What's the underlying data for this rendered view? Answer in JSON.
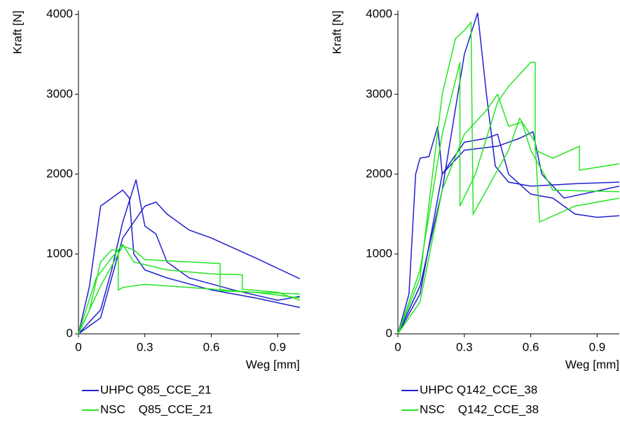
{
  "chart_data": [
    {
      "type": "line",
      "y_label": "Kraft [N]",
      "x_label": "Weg [mm]",
      "xlim": [
        0,
        1.0
      ],
      "ylim": [
        0,
        4050
      ],
      "xticks": [
        0,
        0.3,
        0.6,
        0.9
      ],
      "yticks": [
        0,
        1000,
        2000,
        3000,
        4000
      ],
      "series": [
        {
          "name": "UHPC Q85_CCE_21",
          "color": "#1f1fd0",
          "curves": [
            {
              "x": [
                0,
                0.05,
                0.1,
                0.15,
                0.2,
                0.23,
                0.25,
                0.3,
                0.4,
                0.6,
                0.8,
                1.0
              ],
              "values": [
                0,
                600,
                1600,
                1700,
                1800,
                1700,
                1000,
                800,
                700,
                550,
                450,
                330
              ]
            },
            {
              "x": [
                0,
                0.1,
                0.15,
                0.2,
                0.26,
                0.3,
                0.35,
                0.4,
                0.5,
                0.7,
                0.9,
                1.0
              ],
              "values": [
                0,
                300,
                800,
                1400,
                1930,
                1350,
                1250,
                900,
                700,
                550,
                420,
                470
              ]
            },
            {
              "x": [
                0,
                0.1,
                0.15,
                0.2,
                0.3,
                0.35,
                0.4,
                0.5,
                0.6,
                0.8,
                0.9,
                1.0
              ],
              "values": [
                0,
                200,
                700,
                1200,
                1600,
                1650,
                1500,
                1300,
                1200,
                950,
                820,
                690
              ]
            }
          ]
        },
        {
          "name": "NSC    Q85_CCE_21",
          "color": "#22e622",
          "curves": [
            {
              "x": [
                0,
                0.05,
                0.1,
                0.15,
                0.18,
                0.18,
                0.2,
                0.3,
                0.5,
                0.8,
                1.0
              ],
              "values": [
                0,
                300,
                900,
                1050,
                1050,
                550,
                580,
                620,
                580,
                520,
                500
              ]
            },
            {
              "x": [
                0,
                0.1,
                0.2,
                0.25,
                0.3,
                0.5,
                0.64,
                0.64,
                0.8,
                1.0
              ],
              "values": [
                0,
                600,
                1100,
                1050,
                930,
                900,
                880,
                540,
                520,
                450
              ]
            },
            {
              "x": [
                0,
                0.08,
                0.15,
                0.2,
                0.25,
                0.4,
                0.6,
                0.74,
                0.74,
                0.9,
                1.0
              ],
              "values": [
                0,
                700,
                950,
                1120,
                900,
                800,
                750,
                740,
                560,
                520,
                420
              ]
            }
          ]
        }
      ]
    },
    {
      "type": "line",
      "y_label": "Kraft [N]",
      "x_label": "Weg [mm]",
      "xlim": [
        0,
        1.0
      ],
      "ylim": [
        0,
        4050
      ],
      "xticks": [
        0,
        0.3,
        0.6,
        0.9
      ],
      "yticks": [
        0,
        1000,
        2000,
        3000,
        4000
      ],
      "series": [
        {
          "name": "UHPC Q142_CCE_38",
          "color": "#1f1fd0",
          "curves": [
            {
              "x": [
                0,
                0.05,
                0.08,
                0.1,
                0.14,
                0.18,
                0.2,
                0.3,
                0.4,
                0.45,
                0.5,
                0.6,
                0.7,
                0.8,
                0.9,
                1.0
              ],
              "values": [
                0,
                500,
                2000,
                2200,
                2220,
                2600,
                2000,
                2400,
                2450,
                2500,
                2000,
                1750,
                1700,
                1500,
                1460,
                1480
              ]
            },
            {
              "x": [
                0,
                0.1,
                0.2,
                0.3,
                0.36,
                0.4,
                0.44,
                0.5,
                0.6,
                0.8,
                1.0
              ],
              "values": [
                0,
                600,
                1800,
                3500,
                4020,
                3000,
                2100,
                1900,
                1850,
                1880,
                1900
              ]
            },
            {
              "x": [
                0,
                0.1,
                0.2,
                0.3,
                0.45,
                0.55,
                0.61,
                0.65,
                0.75,
                1.0
              ],
              "values": [
                0,
                500,
                2000,
                2300,
                2350,
                2450,
                2530,
                2000,
                1700,
                1850
              ]
            }
          ]
        },
        {
          "name": "NSC    Q142_CCE_38",
          "color": "#22e622",
          "curves": [
            {
              "x": [
                0,
                0.1,
                0.2,
                0.26,
                0.3,
                0.33,
                0.34,
                0.4,
                0.5,
                0.55,
                0.62,
                0.64,
                0.8,
                1.0
              ],
              "values": [
                0,
                700,
                3000,
                3700,
                3800,
                3900,
                1500,
                1800,
                2300,
                2700,
                2400,
                1400,
                1600,
                1700
              ]
            },
            {
              "x": [
                0,
                0.1,
                0.2,
                0.28,
                0.28,
                0.35,
                0.45,
                0.5,
                0.6,
                0.62,
                0.62,
                0.7,
                0.82,
                0.82,
                1.0
              ],
              "values": [
                0,
                800,
                2500,
                3400,
                1600,
                2000,
                2900,
                3100,
                3400,
                3400,
                2300,
                2200,
                2350,
                2050,
                2130
              ]
            },
            {
              "x": [
                0,
                0.1,
                0.2,
                0.3,
                0.4,
                0.45,
                0.5,
                0.56,
                0.6,
                0.7,
                1.0
              ],
              "values": [
                0,
                400,
                1800,
                2500,
                2800,
                3000,
                2600,
                2650,
                2300,
                1800,
                1780
              ]
            }
          ]
        }
      ]
    }
  ]
}
